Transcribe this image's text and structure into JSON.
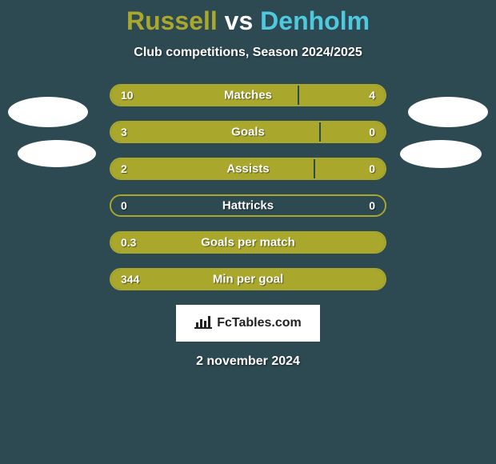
{
  "title": {
    "player1": "Russell",
    "vs": "vs",
    "player2": "Denholm",
    "player1_color": "#a9a82d",
    "vs_color": "#ffffff",
    "player2_color": "#4fc9de"
  },
  "subtitle": "Club competitions, Season 2024/2025",
  "background_color": "#2d4952",
  "bar_color": "#a9a82d",
  "bar_border_color": "#a9a82d",
  "stats": [
    {
      "label": "Matches",
      "left_value": "10",
      "right_value": "4",
      "left_pct": 68,
      "right_pct": 32,
      "left_fill": "#a9a82d",
      "right_fill": "#a9a82d",
      "gap_fill": "#2d4952"
    },
    {
      "label": "Goals",
      "left_value": "3",
      "right_value": "0",
      "left_pct": 76,
      "right_pct": 24,
      "left_fill": "#a9a82d",
      "right_fill": "#a9a82d",
      "gap_fill": "#2d4952"
    },
    {
      "label": "Assists",
      "left_value": "2",
      "right_value": "0",
      "left_pct": 74,
      "right_pct": 26,
      "left_fill": "#a9a82d",
      "right_fill": "#a9a82d",
      "gap_fill": "#2d4952"
    },
    {
      "label": "Hattricks",
      "left_value": "0",
      "right_value": "0",
      "left_pct": 50,
      "right_pct": 50,
      "left_fill": "#2d4952",
      "right_fill": "#2d4952",
      "gap_fill": "#2d4952"
    },
    {
      "label": "Goals per match",
      "left_value": "0.3",
      "right_value": "",
      "left_pct": 100,
      "right_pct": 0,
      "left_fill": "#a9a82d",
      "right_fill": "#a9a82d",
      "gap_fill": "#2d4952"
    },
    {
      "label": "Min per goal",
      "left_value": "344",
      "right_value": "",
      "left_pct": 100,
      "right_pct": 0,
      "left_fill": "#a9a82d",
      "right_fill": "#a9a82d",
      "gap_fill": "#2d4952"
    }
  ],
  "logo_text": "FcTables.com",
  "date": "2 november 2024"
}
